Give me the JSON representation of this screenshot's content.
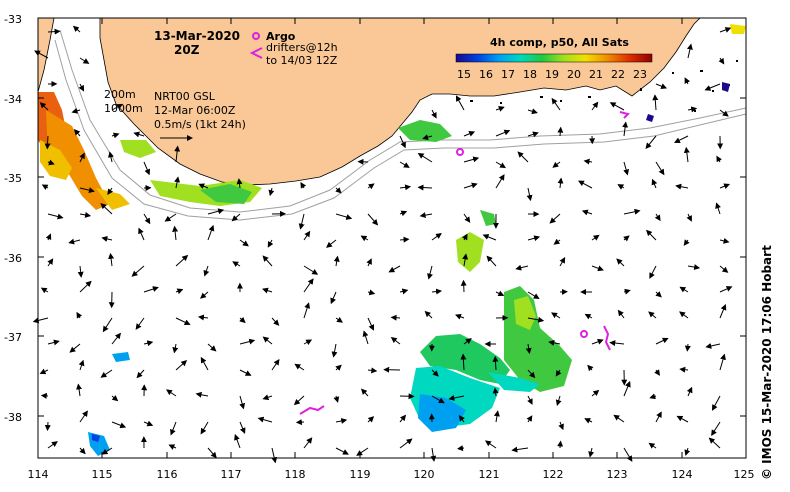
{
  "map": {
    "title_date": "13-Mar-2020",
    "title_time": "20Z",
    "argo_label": "Argo",
    "drifters_label_1": "drifters@12h",
    "drifters_label_2": "to 14/03 12Z",
    "isobath_200": "200m",
    "isobath_1000": "1000m",
    "currents_source": "NRT00 GSL",
    "currents_time": "12-Mar 06:00Z",
    "vector_scale": "0.5m/s (1kt 24h)",
    "credit": "© IMOS 15-Mar-2020 17:06 Hobart",
    "land_color": "#f9c896",
    "drifter_color": "#e020e0",
    "argo_color": "#e020e0"
  },
  "colorbar": {
    "title": "4h comp, p50, All Sats",
    "ticks": [
      "15",
      "16",
      "17",
      "18",
      "19",
      "20",
      "21",
      "22",
      "23"
    ],
    "colors": [
      "#1a0a8c",
      "#0040e0",
      "#00a0f0",
      "#00d8c0",
      "#20c840",
      "#a0e020",
      "#f0e000",
      "#f09000",
      "#e03000",
      "#900000"
    ]
  },
  "axes": {
    "x_labels": [
      "114",
      "115",
      "116",
      "117",
      "118",
      "119",
      "120",
      "121",
      "122",
      "123",
      "124",
      "125"
    ],
    "y_labels": [
      "-33",
      "-34",
      "-35",
      "-36",
      "-37",
      "-38"
    ],
    "lon_range": [
      114,
      125
    ],
    "lat_range": [
      -38.55,
      -33
    ]
  }
}
